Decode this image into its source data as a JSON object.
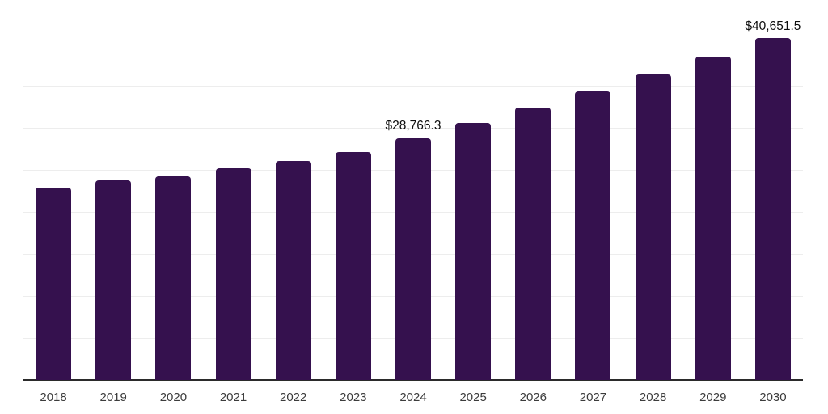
{
  "chart_data": {
    "type": "bar",
    "title": "",
    "xlabel": "",
    "ylabel": "",
    "categories": [
      "2018",
      "2019",
      "2020",
      "2021",
      "2022",
      "2023",
      "2024",
      "2025",
      "2026",
      "2027",
      "2028",
      "2029",
      "2030"
    ],
    "values": [
      22850,
      23720,
      24200,
      25160,
      26030,
      27150,
      28766.3,
      30610,
      32430,
      34350,
      36380,
      38460,
      40651.5
    ],
    "data_labels": {
      "2024": "$28,766.3",
      "2030": "$40,651.5"
    },
    "ylim": [
      0,
      45000
    ],
    "gridline_step": 5000,
    "grid": true,
    "legend_position": "none",
    "bar_color": "#35114E",
    "gridline_color": "#ededed",
    "axis_line_color": "#2b2b2b",
    "tick_label_color": "#3c3c3c",
    "data_label_color": "#0d0d0d",
    "background_color": "#ffffff"
  }
}
